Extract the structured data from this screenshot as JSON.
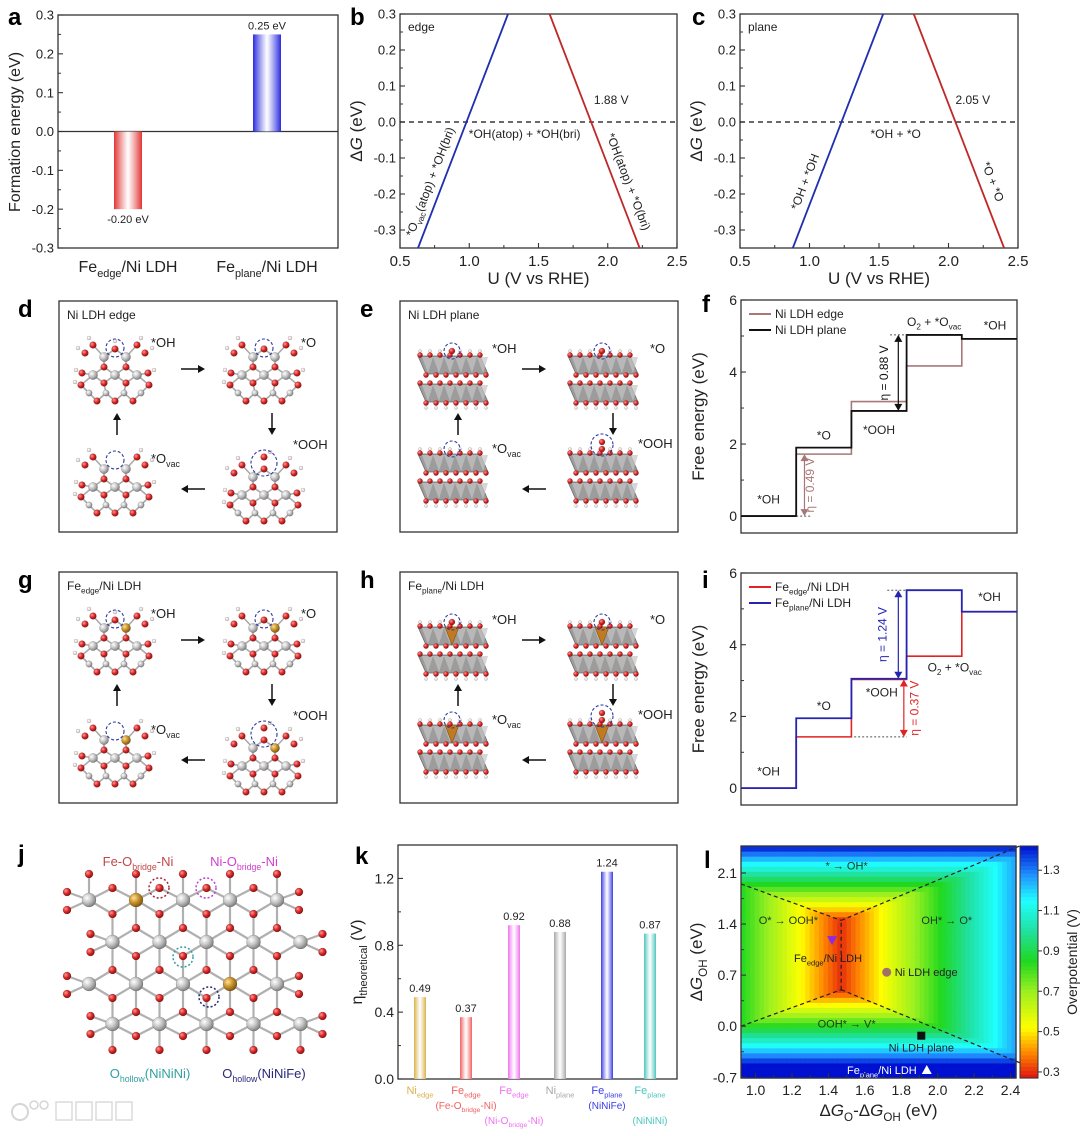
{
  "panel_letters": {
    "a": "a",
    "b": "b",
    "c": "c",
    "d": "d",
    "e": "e",
    "f": "f",
    "g": "g",
    "h": "h",
    "i": "i",
    "j": "j",
    "k": "k",
    "l": "l"
  },
  "chart_data": [
    {
      "id": "a",
      "type": "bar",
      "title": "",
      "xlabel": "",
      "ylabel": "Formation energy (eV)",
      "categories": [
        [
          "Fe",
          {
            "sub": "edge"
          },
          "/Ni LDH"
        ],
        [
          "Fe",
          {
            "sub": "plane"
          },
          "/Ni LDH"
        ]
      ],
      "values": [
        -0.2,
        0.25
      ],
      "value_labels": [
        "-0.20 eV",
        "0.25 eV"
      ],
      "colors": [
        "#e03535",
        "#2a2ae0"
      ],
      "ylim": [
        -0.3,
        0.3
      ],
      "yticks": [
        "-0.3",
        "-0.2",
        "-0.1",
        "0.0",
        "0.1",
        "0.2",
        "0.3"
      ]
    },
    {
      "id": "b",
      "type": "line",
      "annotation": "edge",
      "xlabel": "U (V vs RHE)",
      "ylabel": [
        "Δ",
        {
          "i": "G"
        },
        " (eV)"
      ],
      "xlim": [
        0.5,
        2.5
      ],
      "ylim": [
        -0.35,
        0.3
      ],
      "xticks": [
        "0.5",
        "1.0",
        "1.5",
        "2.0",
        "2.5"
      ],
      "yticks": [
        "-0.3",
        "-0.2",
        "-0.1",
        "0.0",
        "0.1",
        "0.2",
        "0.3"
      ],
      "reference_line": 0,
      "series": [
        {
          "color": "#1f2fb0",
          "x": [
            0.63,
            1.28
          ],
          "y": [
            -0.35,
            0.3
          ]
        },
        {
          "color": "#c02828",
          "x": [
            1.58,
            2.23
          ],
          "y": [
            0.3,
            -0.35
          ]
        }
      ],
      "labels": {
        "crossing": "1.88 V",
        "middle": "*OH(atop) + *OH(bri)",
        "left": [
          "*O",
          {
            "sub": "vac"
          },
          "(atop) + *OH(bri)"
        ],
        "right": "*OH(atop) + *O(bri)"
      }
    },
    {
      "id": "c",
      "type": "line",
      "annotation": "plane",
      "xlabel": "U (V vs RHE)",
      "ylabel": [
        "Δ",
        {
          "i": "G"
        },
        " (eV)"
      ],
      "xlim": [
        0.5,
        2.5
      ],
      "ylim": [
        -0.35,
        0.3
      ],
      "xticks": [
        "0.5",
        "1.0",
        "1.5",
        "2.0",
        "2.5"
      ],
      "yticks": [
        "-0.3",
        "-0.2",
        "-0.1",
        "0.0",
        "0.1",
        "0.2",
        "0.3"
      ],
      "reference_line": 0,
      "series": [
        {
          "color": "#1f2fb0",
          "x": [
            0.88,
            1.53
          ],
          "y": [
            -0.35,
            0.3
          ]
        },
        {
          "color": "#c02828",
          "x": [
            1.75,
            2.4
          ],
          "y": [
            0.3,
            -0.35
          ]
        }
      ],
      "labels": {
        "crossing": "2.05 V",
        "middle": "*OH + *O",
        "left": "*OH + *OH",
        "right": "*O + *O"
      }
    },
    {
      "id": "f",
      "type": "line",
      "subtype": "free-energy-diagram",
      "ylabel": "Free energy (eV)",
      "ylim": [
        -0.47,
        6
      ],
      "yticks": [
        "0",
        "2",
        "4",
        "6"
      ],
      "steps": [
        "*OH",
        "*O",
        "*OOH",
        [
          "O",
          {
            "sub": "2"
          },
          " + *O",
          {
            "sub": "vac"
          }
        ],
        "*OH"
      ],
      "series": [
        {
          "name": "Ni LDH edge",
          "color": "#a87878",
          "values": [
            0,
            1.72,
            3.18,
            4.17,
            4.92
          ]
        },
        {
          "name": "Ni LDH plane",
          "color": "#111111",
          "values": [
            0,
            1.9,
            2.92,
            5.03,
            4.92
          ]
        }
      ],
      "overpotentials": [
        {
          "label": "η = 0.49 V",
          "series": 0,
          "from": 0,
          "to": 1.72
        },
        {
          "label": "η = 0.88 V",
          "series": 1,
          "from": 2.92,
          "to": 5.03
        }
      ]
    },
    {
      "id": "i",
      "type": "line",
      "subtype": "free-energy-diagram",
      "ylabel": "Free energy (eV)",
      "ylim": [
        -0.47,
        6
      ],
      "yticks": [
        "0",
        "2",
        "4",
        "6"
      ],
      "steps": [
        "*OH",
        "*O",
        "*OOH",
        [
          "O",
          {
            "sub": "2"
          },
          " + *O",
          {
            "sub": "vac"
          }
        ],
        "*OH"
      ],
      "series": [
        {
          "name": [
            "Fe",
            {
              "sub": "edge"
            },
            "/Ni LDH"
          ],
          "color": "#e02424",
          "values": [
            0,
            1.43,
            3.03,
            3.68,
            4.92
          ]
        },
        {
          "name": [
            "Fe",
            {
              "sub": "plane"
            },
            "/Ni LDH"
          ],
          "color": "#2424b0",
          "values": [
            0,
            1.95,
            3.05,
            5.52,
            4.92
          ]
        }
      ],
      "overpotentials": [
        {
          "label": "η = 1.24 V",
          "series": 1,
          "from": 3.05,
          "to": 5.52
        },
        {
          "label": "η = 0.37 V",
          "series": 0,
          "from": 1.43,
          "to": 3.03
        }
      ]
    },
    {
      "id": "k",
      "type": "bar",
      "ylabel": [
        "η",
        {
          "sub": "theoretical"
        },
        " (V)"
      ],
      "ylim": [
        0,
        1.4
      ],
      "yticks": [
        "0.0",
        "0.4",
        "0.8",
        "1.2"
      ],
      "categories": [
        {
          "line1": [
            "Ni",
            {
              "sub": "edge"
            }
          ],
          "line2": ""
        },
        {
          "line1": [
            "Fe",
            {
              "sub": "edge"
            }
          ],
          "line2": [
            "(Fe-O",
            {
              "sub": "bridge"
            },
            "-Ni)"
          ]
        },
        {
          "line1": [
            "Fe",
            {
              "sub": "edge"
            }
          ],
          "line2": [
            "(Ni-O",
            {
              "sub": "bridge"
            },
            "-Ni)"
          ]
        },
        {
          "line1": [
            "Ni",
            {
              "sub": "plane"
            }
          ],
          "line2": ""
        },
        {
          "line1": [
            "Fe",
            {
              "sub": "plane"
            }
          ],
          "line2": "(NiNiFe)"
        },
        {
          "line1": [
            "Fe",
            {
              "sub": "plane"
            }
          ],
          "line2": "(NiNiNi)"
        }
      ],
      "values": [
        0.49,
        0.37,
        0.92,
        0.88,
        1.24,
        0.87
      ],
      "value_labels": [
        "0.49",
        "0.37",
        "0.92",
        "0.88",
        "1.24",
        "0.87"
      ],
      "colors": [
        "#d9b24a",
        "#f06060",
        "#f070f0",
        "#a8a8a8",
        "#3c3ce6",
        "#4cc6be"
      ]
    },
    {
      "id": "l",
      "type": "heatmap",
      "xlabel": [
        "Δ",
        {
          "i": "G"
        },
        {
          "sub": "O"
        },
        "-Δ",
        {
          "i": "G"
        },
        {
          "sub": "OH"
        },
        " (eV)"
      ],
      "ylabel": [
        "Δ",
        {
          "i": "G"
        },
        {
          "sub": "OH"
        },
        " (eV)"
      ],
      "xlim": [
        0.92,
        2.43
      ],
      "ylim": [
        -0.71,
        2.47
      ],
      "xticks": [
        "1.0",
        "1.2",
        "1.4",
        "1.6",
        "1.8",
        "2.0",
        "2.2",
        "2.4"
      ],
      "yticks": [
        "-0.7",
        "0.0",
        "0.7",
        "1.4",
        "2.1"
      ],
      "colorbar": {
        "label": "Overpotential (V)",
        "range": [
          0.27,
          1.42
        ],
        "ticks": [
          "0.3",
          "0.5",
          "0.7",
          "0.9",
          "1.1",
          "1.3"
        ]
      },
      "limiting_terms": [
        {
          "label": "OH* → O*",
          "a_x": 1,
          "a_y": 0,
          "c": -1.17,
          "label_at": [
            2.05,
            1.4
          ]
        },
        {
          "label": "O* → OOH*",
          "a_x": -1,
          "a_y": 0,
          "c": 1.77,
          "label_at": [
            1.18,
            1.4
          ]
        },
        {
          "label": "* → OH*",
          "a_x": 0,
          "a_y": 1.1,
          "c": -1.295,
          "label_at": [
            1.5,
            2.15
          ]
        },
        {
          "label": "OOH* → V*",
          "a_x": 0,
          "a_y": -1.1,
          "c": 0.85,
          "label_at": [
            1.5,
            -0.02
          ]
        }
      ],
      "boundaries": [
        [
          [
            0.92,
            1.95
          ],
          [
            1.47,
            1.45
          ]
        ],
        [
          [
            1.47,
            1.45
          ],
          [
            2.45,
            2.47
          ]
        ],
        [
          [
            0.92,
            0.0
          ],
          [
            1.47,
            0.5
          ]
        ],
        [
          [
            1.47,
            0.5
          ],
          [
            2.45,
            -0.5
          ]
        ],
        [
          [
            1.47,
            0.5
          ],
          [
            1.47,
            1.45
          ]
        ]
      ],
      "points": [
        {
          "name": [
            "Fe",
            {
              "sub": "edge"
            },
            "/Ni LDH"
          ],
          "x": 1.42,
          "y": 1.18,
          "marker": "triangle-down",
          "color": "#8a2be2"
        },
        {
          "name": "Ni LDH edge",
          "x": 1.72,
          "y": 0.74,
          "marker": "circle",
          "color": "#a0706a"
        },
        {
          "name": "Ni LDH plane",
          "x": 1.91,
          "y": -0.13,
          "marker": "square",
          "color": "#111111"
        },
        {
          "name": [
            "Fe",
            {
              "sub": "plane"
            },
            "/Ni LDH"
          ],
          "x": 1.94,
          "y": -0.6,
          "marker": "triangle-up",
          "color": "#ffffff"
        }
      ]
    }
  ],
  "schematics": {
    "d": {
      "title": "Ni LDH edge",
      "states": [
        "*OH",
        "*O",
        "*OOH",
        [
          "*O",
          {
            "sub": "vac"
          }
        ]
      ]
    },
    "e": {
      "title": "Ni LDH plane",
      "states": [
        "*OH",
        "*O",
        "*OOH",
        [
          "*O",
          {
            "sub": "vac"
          }
        ]
      ]
    },
    "g": {
      "title": [
        "Fe",
        {
          "sub": "edge"
        },
        "/Ni LDH"
      ],
      "states": [
        "*OH",
        "*O",
        "*OOH",
        [
          "*O",
          {
            "sub": "vac"
          }
        ]
      ]
    },
    "h": {
      "title": [
        "Fe",
        {
          "sub": "plane"
        },
        "/Ni LDH"
      ],
      "states": [
        "*OH",
        "*O",
        "*OOH",
        [
          "*O",
          {
            "sub": "vac"
          }
        ]
      ]
    },
    "j": {
      "sites": [
        {
          "label": [
            "Fe-O",
            {
              "sub": "bridge"
            },
            "-Ni"
          ],
          "color": "#c04848"
        },
        {
          "label": [
            "Ni-O",
            {
              "sub": "bridge"
            },
            "-Ni"
          ],
          "color": "#d040d0"
        },
        {
          "label": [
            "O",
            {
              "sub": "hollow"
            },
            "(NiNiNi)"
          ],
          "color": "#30a0a0"
        },
        {
          "label": [
            "O",
            {
              "sub": "hollow"
            },
            "(NiNiFe)"
          ],
          "color": "#28287a"
        }
      ]
    }
  },
  "watermark": "大数跨境"
}
